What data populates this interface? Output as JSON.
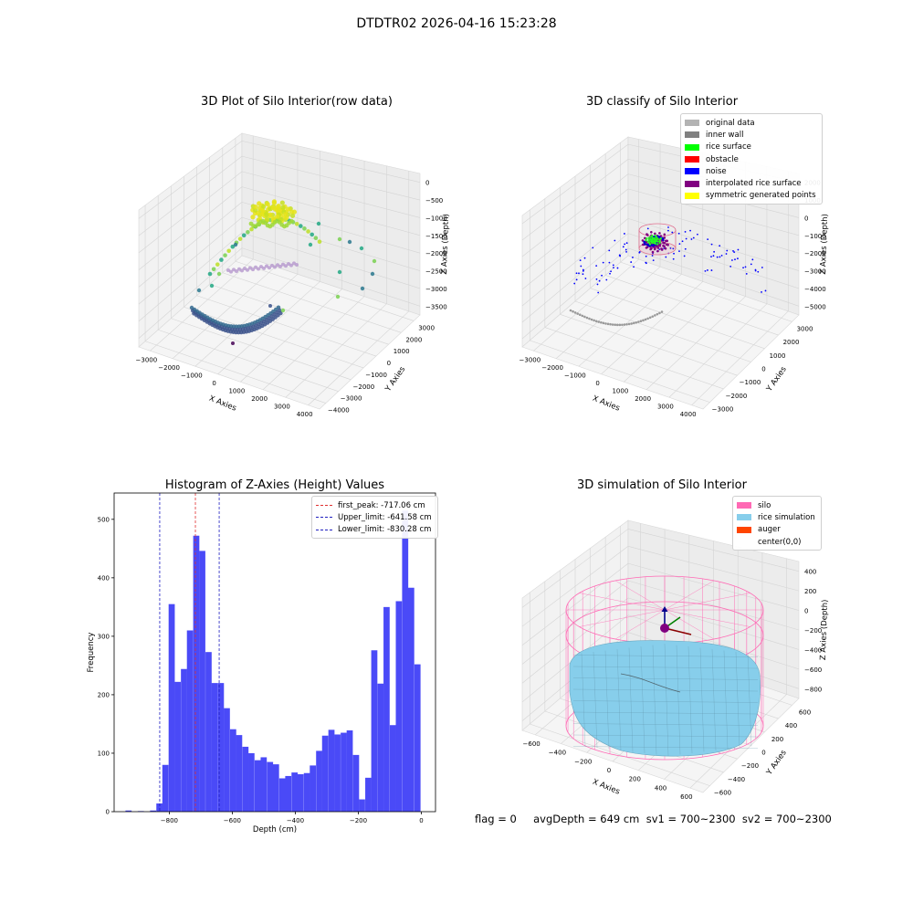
{
  "figure": {
    "suptitle": "DTDTR02 2026-04-16 15:23:28"
  },
  "chart_data": [
    {
      "type": "scatter3d",
      "title": "3D Plot of Silo Interior(row data)",
      "xlabel": "X Axies",
      "ylabel": "Y Axies",
      "zlabel": "Z Axies (Depth)",
      "xticks": [
        "−3000",
        "−2000",
        "−1000",
        "0",
        "1000",
        "2000",
        "3000",
        "4000"
      ],
      "yticks": [
        "−4000",
        "−3000",
        "−2000",
        "−1000",
        "0",
        "1000",
        "2000",
        "3000"
      ],
      "zticks": [
        "0",
        "−500",
        "−1000",
        "−1500",
        "−2000",
        "−2500",
        "−3000",
        "−3500"
      ],
      "grid": true
    },
    {
      "type": "scatter3d",
      "title": "3D classify of Silo Interior",
      "xlabel": "X Axies",
      "ylabel": "Y Axies",
      "zlabel": "Z Axies (Depth)",
      "xticks": [
        "−3000",
        "−2000",
        "−1000",
        "0",
        "1000",
        "2000",
        "3000",
        "4000"
      ],
      "yticks": [
        "−3000",
        "−2000",
        "−1000",
        "0",
        "1000",
        "2000",
        "3000"
      ],
      "zticks": [
        "2000",
        "1000",
        "0",
        "−1000",
        "−2000",
        "−3000",
        "−4000",
        "−5000"
      ],
      "legend_position": "top-right",
      "legend": [
        {
          "label": "original data",
          "color": "#b3b3b3"
        },
        {
          "label": "inner wall",
          "color": "#808080"
        },
        {
          "label": "rice surface",
          "color": "#00ff00"
        },
        {
          "label": "obstacle",
          "color": "#ff0000"
        },
        {
          "label": "noise",
          "color": "#0000ff"
        },
        {
          "label": "interpolated rice surface",
          "color": "#800080"
        },
        {
          "label": "symmetric generated points",
          "color": "#ffff00"
        }
      ],
      "grid": true
    },
    {
      "type": "bar",
      "title": "Histogram of Z-Axies (Height) Values",
      "xlabel": "Depth (cm)",
      "ylabel": "Frequency",
      "xlim": [
        -975,
        45
      ],
      "ylim": [
        0,
        545
      ],
      "xticks": [
        {
          "value": -800,
          "label": "−800"
        },
        {
          "value": -600,
          "label": "−600"
        },
        {
          "value": -400,
          "label": "−400"
        },
        {
          "value": -200,
          "label": "−200"
        },
        {
          "value": 0,
          "label": "0"
        }
      ],
      "yticks": [
        0,
        100,
        200,
        300,
        400,
        500
      ],
      "bar_color": "#4a4af7",
      "bin_width": 19.5,
      "bins": [
        {
          "x": -939,
          "y": 2
        },
        {
          "x": -900,
          "y": 1
        },
        {
          "x": -861,
          "y": 2
        },
        {
          "x": -841,
          "y": 14
        },
        {
          "x": -822,
          "y": 80
        },
        {
          "x": -802,
          "y": 355
        },
        {
          "x": -783,
          "y": 222
        },
        {
          "x": -763,
          "y": 244
        },
        {
          "x": -744,
          "y": 310
        },
        {
          "x": -724,
          "y": 472
        },
        {
          "x": -705,
          "y": 446
        },
        {
          "x": -685,
          "y": 273
        },
        {
          "x": -666,
          "y": 220
        },
        {
          "x": -646,
          "y": 220
        },
        {
          "x": -627,
          "y": 177
        },
        {
          "x": -607,
          "y": 141
        },
        {
          "x": -588,
          "y": 131
        },
        {
          "x": -568,
          "y": 111
        },
        {
          "x": -549,
          "y": 100
        },
        {
          "x": -529,
          "y": 88
        },
        {
          "x": -510,
          "y": 93
        },
        {
          "x": -490,
          "y": 85
        },
        {
          "x": -471,
          "y": 81
        },
        {
          "x": -451,
          "y": 57
        },
        {
          "x": -432,
          "y": 61
        },
        {
          "x": -412,
          "y": 67
        },
        {
          "x": -393,
          "y": 64
        },
        {
          "x": -373,
          "y": 66
        },
        {
          "x": -354,
          "y": 79
        },
        {
          "x": -334,
          "y": 104
        },
        {
          "x": -315,
          "y": 130
        },
        {
          "x": -295,
          "y": 140
        },
        {
          "x": -276,
          "y": 132
        },
        {
          "x": -256,
          "y": 135
        },
        {
          "x": -237,
          "y": 139
        },
        {
          "x": -217,
          "y": 97
        },
        {
          "x": -198,
          "y": 21
        },
        {
          "x": -178,
          "y": 58
        },
        {
          "x": -159,
          "y": 276
        },
        {
          "x": -139,
          "y": 219
        },
        {
          "x": -120,
          "y": 350
        },
        {
          "x": -100,
          "y": 148
        },
        {
          "x": -81,
          "y": 360
        },
        {
          "x": -61,
          "y": 515
        },
        {
          "x": -42,
          "y": 383
        },
        {
          "x": -22,
          "y": 252
        }
      ],
      "vlines": [
        {
          "x": -717.06,
          "color": "#e03030",
          "label": "first_peak: -717.06 cm"
        },
        {
          "x": -641.58,
          "color": "#2020c0",
          "label": "Upper_limit: -641.58 cm"
        },
        {
          "x": -830.28,
          "color": "#2020c0",
          "label": "Lower_limit: -830.28 cm"
        }
      ],
      "legend_position": "top-right"
    },
    {
      "type": "surface3d",
      "title": "3D simulation of Silo Interior",
      "xlabel": "X Axies",
      "ylabel": "Y Axies",
      "zlabel": "Z Axies (Depth)",
      "xticks": [
        "−600",
        "−400",
        "−200",
        "0",
        "200",
        "400",
        "600"
      ],
      "yticks": [
        "−600",
        "−400",
        "−200",
        "0",
        "200",
        "400",
        "600"
      ],
      "zticks": [
        "400",
        "200",
        "0",
        "−200",
        "−400",
        "−600",
        "−800"
      ],
      "legend_position": "top-right",
      "legend": [
        {
          "label": "silo",
          "color": "#ff69b4"
        },
        {
          "label": "rice simulation",
          "color": "#87ceeb"
        },
        {
          "label": "auger",
          "color": "#ff4500"
        },
        {
          "label": "center(0,0)",
          "color": "#ffffff"
        }
      ],
      "grid": true
    }
  ],
  "status": {
    "text": "flag = 0     avgDepth = 649 cm  sv1 = 700~2300  sv2 = 700~2300"
  }
}
